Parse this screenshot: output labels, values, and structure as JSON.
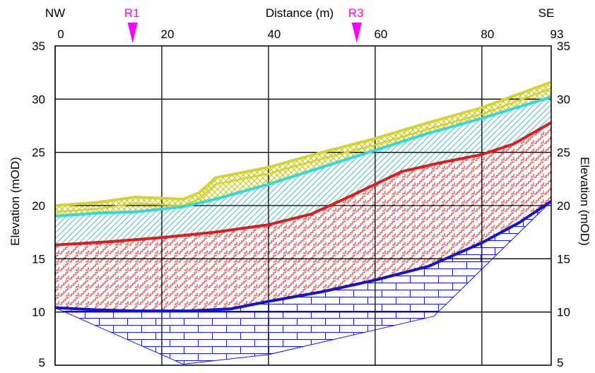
{
  "chart_data": {
    "type": "area",
    "title": "",
    "xlabel": "Distance (m)",
    "ylabel": "Elevation (mOD)",
    "ylabel_right": "Elevation (mOD)",
    "xlim": [
      0,
      93
    ],
    "ylim": [
      5,
      35
    ],
    "xticks": [
      0,
      20,
      40,
      60,
      80,
      93
    ],
    "yticks": [
      5,
      10,
      15,
      20,
      25,
      30,
      35
    ],
    "xgrid": [
      0,
      20,
      40,
      60,
      80
    ],
    "ygrid": [
      10,
      15,
      20,
      25,
      30
    ],
    "grid": true,
    "orientation_left": "NW",
    "orientation_right": "SE",
    "markers": [
      {
        "label": "R1",
        "x": 14,
        "color": "#ff00ff"
      },
      {
        "label": "R3",
        "x": 56,
        "color": "#ff00ff"
      }
    ],
    "series": [
      {
        "name": "",
        "color": "#d4d42a",
        "pattern": "crosshatch",
        "x": [
          0,
          8,
          15,
          24,
          27,
          30,
          40,
          50,
          60,
          70,
          80,
          93
        ],
        "y": [
          20.0,
          20.3,
          20.8,
          20.6,
          21.2,
          22.6,
          23.6,
          25.0,
          26.3,
          27.8,
          29.2,
          31.6
        ]
      },
      {
        "name": "",
        "color": "#30d8e0",
        "pattern": "diagonal",
        "x": [
          0,
          8,
          15,
          24,
          30,
          40,
          50,
          60,
          70,
          80,
          93
        ],
        "y": [
          19.0,
          19.3,
          19.4,
          19.9,
          20.6,
          22.0,
          23.6,
          25.2,
          26.8,
          28.2,
          30.2
        ]
      },
      {
        "name": "",
        "color": "#e81818",
        "pattern": "zigzag",
        "x": [
          0,
          10,
          20,
          30,
          40,
          48,
          55,
          60,
          65,
          72,
          80,
          86,
          93
        ],
        "y": [
          16.3,
          16.6,
          17.0,
          17.5,
          18.2,
          19.2,
          20.8,
          22.0,
          23.2,
          24.0,
          24.8,
          25.8,
          27.8
        ]
      },
      {
        "name": "",
        "color": "#1010e0",
        "pattern": "brick",
        "x": [
          0,
          8,
          15,
          25,
          33,
          40,
          50,
          60,
          70,
          80,
          87,
          93
        ],
        "y": [
          10.4,
          10.2,
          10.1,
          10.1,
          10.3,
          11.0,
          11.9,
          13.0,
          14.3,
          16.5,
          18.4,
          20.4
        ]
      }
    ],
    "lower_boundary": {
      "x": [
        0,
        24,
        40,
        71,
        93
      ],
      "y": [
        10.4,
        5.1,
        6.0,
        9.6,
        20.4
      ]
    }
  }
}
